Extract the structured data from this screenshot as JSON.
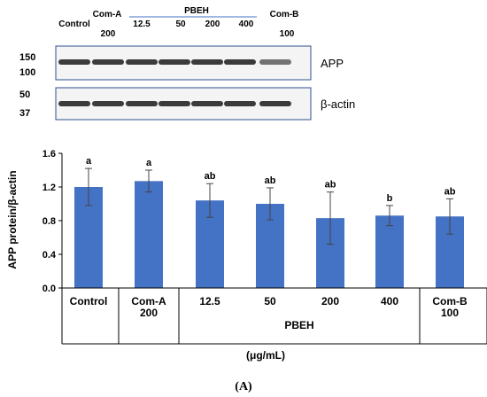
{
  "blot": {
    "lane_labels_top": [
      "Control",
      "Com-A"
    ],
    "lane_sub_a": "200",
    "pbeh_header": "PBEH",
    "pbeh_doses": [
      "12.5",
      "50",
      "200",
      "400"
    ],
    "comb_top": "Com-B",
    "comb_sub": "100",
    "app_markers": [
      "150",
      "100"
    ],
    "actin_markers": [
      "50",
      "37"
    ],
    "app_label": "APP",
    "actin_label": "β-actin"
  },
  "chart_data": {
    "type": "bar",
    "categories": [
      "Control",
      "Com-A 200",
      "12.5",
      "50",
      "200",
      "400",
      "Com-B 100"
    ],
    "values": [
      1.2,
      1.27,
      1.04,
      1.0,
      0.83,
      0.86,
      0.85
    ],
    "errors": [
      0.22,
      0.13,
      0.2,
      0.19,
      0.31,
      0.12,
      0.21
    ],
    "significance": [
      "a",
      "a",
      "ab",
      "ab",
      "ab",
      "b",
      "ab"
    ],
    "ylabel": "APP protein/β-actin",
    "xlabel": "(μg/mL)",
    "ylim": [
      0,
      1.6
    ],
    "yticks": [
      "0.0",
      "0.4",
      "0.8",
      "1.2",
      "1.6"
    ],
    "bar_color": "#4472c4",
    "grid": false,
    "x_table": {
      "row1": [
        "Control",
        "Com-A",
        "12.5",
        "50",
        "200",
        "400",
        "Com-B"
      ],
      "row1_sub": [
        "",
        "200",
        "",
        "",
        "",
        "",
        "100"
      ],
      "group_label": "PBEH"
    }
  },
  "caption": "(A)"
}
